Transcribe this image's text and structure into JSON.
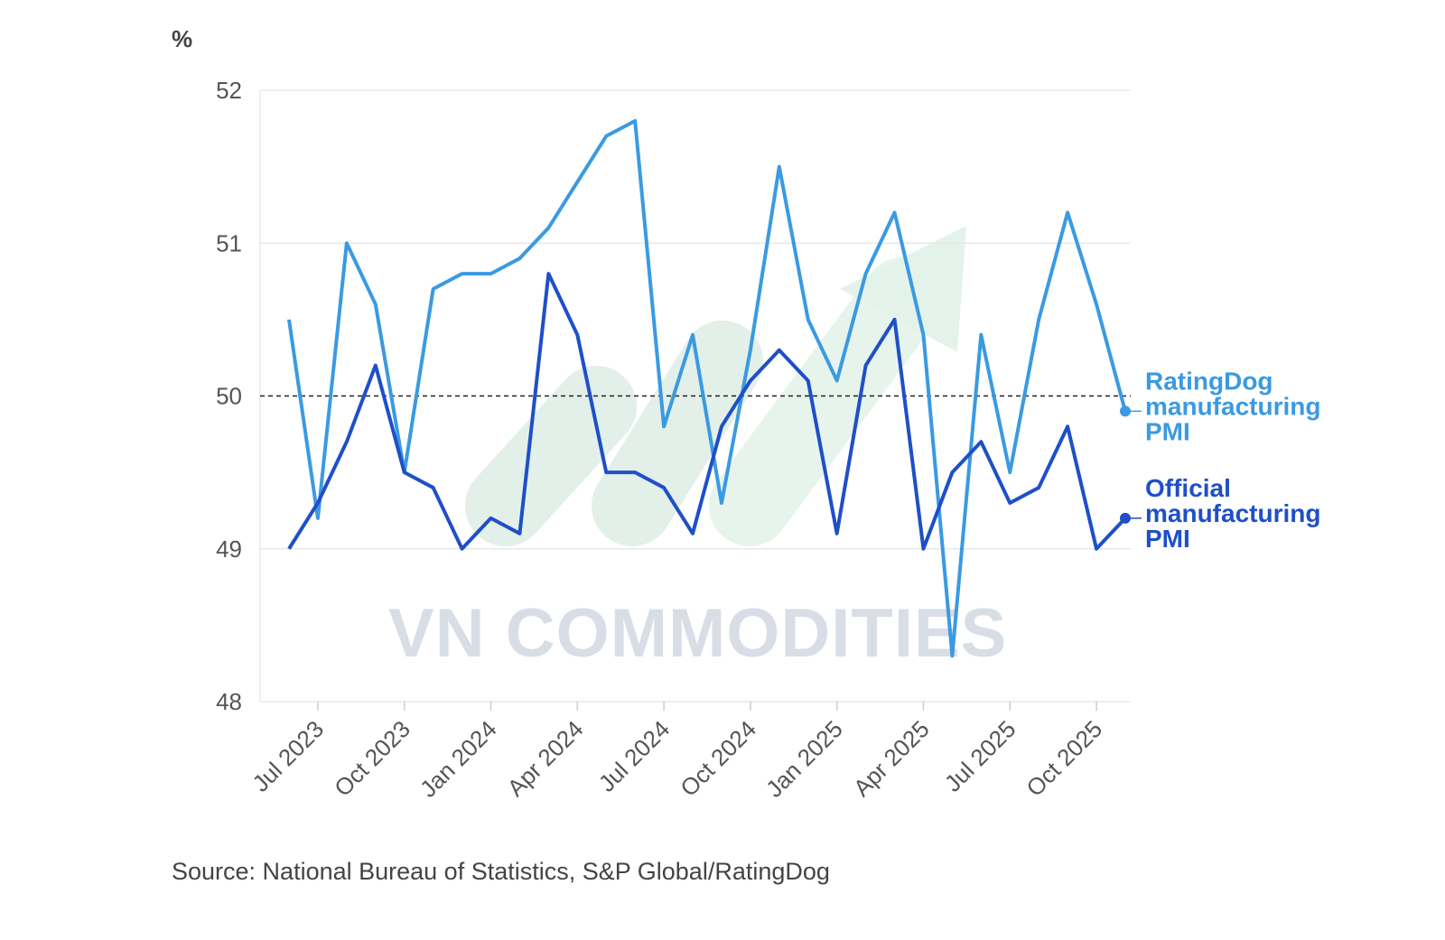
{
  "chart_data": {
    "type": "line",
    "unit_label": "%",
    "source": "Source: National Bureau of Statistics, S&P Global/RatingDog",
    "watermark": "VN COMMODITIES",
    "x": [
      "Jun 2023",
      "Jul 2023",
      "Aug 2023",
      "Sep 2023",
      "Oct 2023",
      "Nov 2023",
      "Dec 2023",
      "Jan 2024",
      "Feb 2024",
      "Mar 2024",
      "Apr 2024",
      "May 2024",
      "Jun 2024",
      "Jul 2024",
      "Aug 2024",
      "Sep 2024",
      "Oct 2024",
      "Nov 2024",
      "Dec 2024",
      "Jan 2025",
      "Feb 2025",
      "Mar 2025",
      "Apr 2025",
      "May 2025",
      "Jun 2025",
      "Jul 2025",
      "Aug 2025",
      "Sep 2025",
      "Oct 2025",
      "Nov 2025"
    ],
    "x_tick_labels": [
      "Jul 2023",
      "Oct 2023",
      "Jan 2024",
      "Apr 2024",
      "Jul 2024",
      "Oct 2024",
      "Jan 2025",
      "Apr 2025",
      "Jul 2025",
      "Oct 2025"
    ],
    "y_ticks": [
      48,
      49,
      50,
      51,
      52
    ],
    "ylim": [
      48,
      52
    ],
    "reference_line": 50,
    "grid": true,
    "legend_placement": "right (end-of-line labels)",
    "series": [
      {
        "name": "RatingDog manufacturing PMI",
        "color": "#3a9ae2",
        "values": [
          50.5,
          49.2,
          51.0,
          50.6,
          49.5,
          50.7,
          50.8,
          50.8,
          50.9,
          51.1,
          51.4,
          51.7,
          51.8,
          49.8,
          50.4,
          49.3,
          50.3,
          51.5,
          50.5,
          50.1,
          50.8,
          51.2,
          50.4,
          48.3,
          50.4,
          49.5,
          50.5,
          51.2,
          50.6,
          49.9
        ]
      },
      {
        "name": "Official manufacturing PMI",
        "color": "#1f4fc8",
        "values": [
          49.0,
          49.3,
          49.7,
          50.2,
          49.5,
          49.4,
          49.0,
          49.2,
          49.1,
          50.8,
          50.4,
          49.5,
          49.5,
          49.4,
          49.1,
          49.8,
          50.1,
          50.3,
          50.1,
          49.1,
          50.2,
          50.5,
          49.0,
          49.5,
          49.7,
          49.3,
          49.4,
          49.8,
          49.0,
          49.2
        ]
      }
    ]
  }
}
